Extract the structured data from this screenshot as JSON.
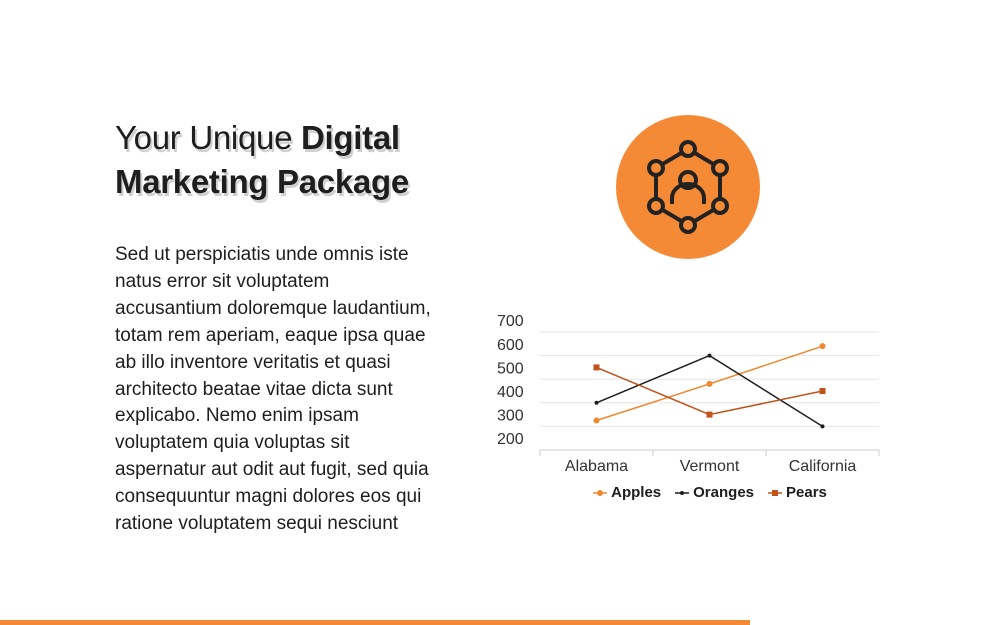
{
  "heading": {
    "regular": "Your Unique",
    "bold": "Digital Marketing Package"
  },
  "body": {
    "lines": [
      "Sed ut perspiciatis unde omnis iste",
      "natus error sit voluptatem",
      "accusantium doloremque laudantium,",
      "totam rem aperiam, eaque ipsa quae",
      "ab illo inventore veritatis et quasi",
      "architecto beatae vitae dicta sunt",
      "explicabo. Nemo enim ipsam",
      "voluptatem quia voluptas sit",
      "aspernatur aut odit aut fugit, sed quia",
      "consequuntur magni dolores eos qui",
      "ratione voluptatem sequi nesciunt"
    ]
  },
  "chart_data": {
    "type": "line",
    "categories": [
      "Alabama",
      "Vermont",
      "California"
    ],
    "series": [
      {
        "name": "Apples",
        "color": "#f0882e",
        "marker": "circle",
        "values": [
          325,
          480,
          640
        ]
      },
      {
        "name": "Oranges",
        "color": "#1e1e1e",
        "marker": "dot",
        "values": [
          400,
          600,
          300
        ]
      },
      {
        "name": "Pears",
        "color": "#c0521a",
        "marker": "square",
        "values": [
          550,
          350,
          450
        ]
      }
    ],
    "ylim": [
      200,
      700
    ],
    "yticks": [
      200,
      300,
      400,
      500,
      600,
      700
    ],
    "grid": true,
    "legend": "bottom"
  }
}
